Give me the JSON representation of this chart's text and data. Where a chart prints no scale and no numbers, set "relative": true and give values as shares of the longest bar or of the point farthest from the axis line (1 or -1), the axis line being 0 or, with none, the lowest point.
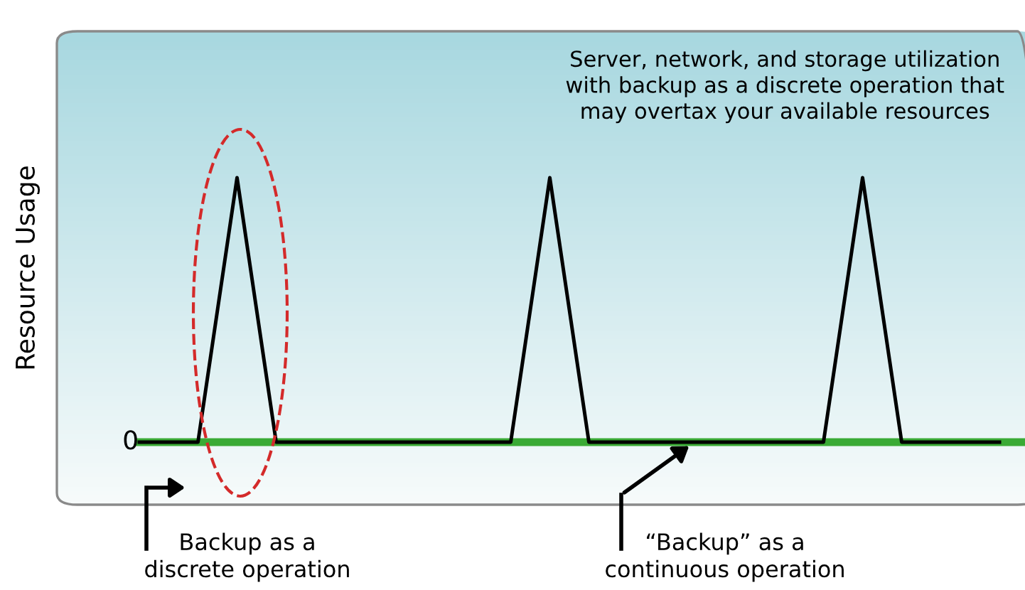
{
  "chart_data": {
    "type": "line",
    "relative": true,
    "ylabel": "Resource Usage",
    "categories": [
      null,
      null,
      null,
      null,
      null,
      null,
      null,
      null,
      null,
      null,
      null,
      null,
      null,
      null,
      null,
      null,
      null,
      null,
      null,
      null,
      null,
      null,
      null,
      null,
      null,
      null,
      null,
      null,
      null,
      null,
      null,
      null,
      null,
      null,
      null,
      null,
      null,
      null,
      null,
      null,
      null,
      null,
      null,
      null,
      null
    ],
    "series": [
      {
        "color": "#000000",
        "values": [
          0,
          0,
          0,
          0,
          0.5,
          1,
          0.5,
          0,
          0,
          0,
          0,
          0,
          0,
          0,
          0,
          0,
          0,
          0,
          0,
          0,
          0.5,
          1,
          0.5,
          0,
          0,
          0,
          0,
          0,
          0,
          0,
          0,
          0,
          0,
          0,
          0,
          0,
          0.5,
          1,
          0.5,
          0,
          0,
          0,
          0,
          0,
          0
        ]
      }
    ],
    "ref_lines": [
      {
        "axis": "y",
        "value": 0,
        "color": "#3aaa35",
        "line_style": "solid"
      }
    ],
    "annotations": [
      "0",
      "Server, network, and storage utilization with backup as a discrete operation that may overtax your available resources",
      "Backup as a\ndiscrete operation",
      "“Backup” as a\ncontinuous operation"
    ],
    "legend": false,
    "marker": "none",
    "line_style": "solid"
  }
}
